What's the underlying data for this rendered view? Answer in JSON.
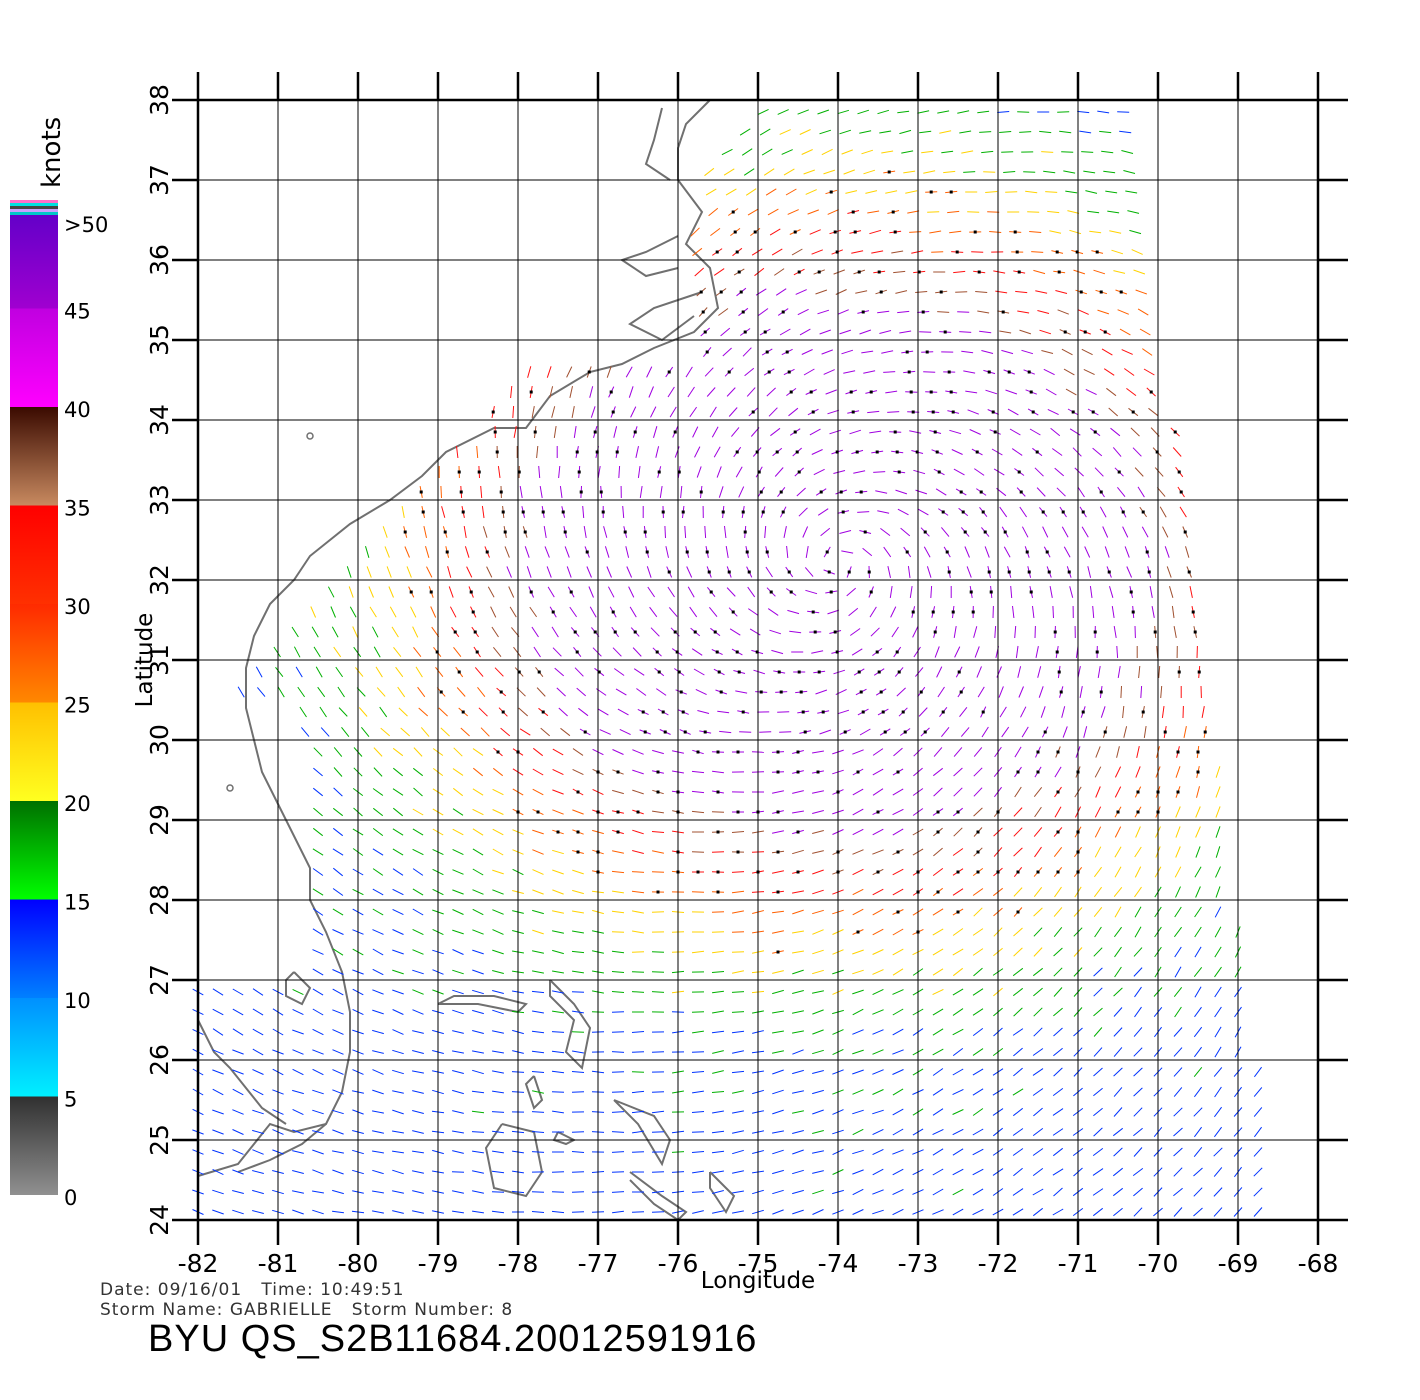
{
  "map": {
    "lon_range": [
      -82,
      -68
    ],
    "lat_range": [
      24,
      38
    ],
    "lon_ticks": [
      "-82",
      "-81",
      "-80",
      "-79",
      "-78",
      "-77",
      "-76",
      "-75",
      "-74",
      "-73",
      "-72",
      "-71",
      "-70",
      "-69",
      "-68"
    ],
    "lat_ticks": [
      "24",
      "25",
      "26",
      "27",
      "28",
      "29",
      "30",
      "31",
      "32",
      "33",
      "34",
      "35",
      "36",
      "37",
      "38"
    ],
    "x_label": "Longitude",
    "y_label": "Latitude",
    "grid": true,
    "land_outline_color": "#707070",
    "storm_center": {
      "lon": -74.0,
      "lat": 32.2
    }
  },
  "legend": {
    "units_label": "knots",
    "bands": [
      {
        "label": "0",
        "from": 0,
        "to": 5,
        "color_top": "#303030",
        "color_bottom": "#909090"
      },
      {
        "label": "5",
        "from": 5,
        "to": 10,
        "color_top": "#0090ff",
        "color_bottom": "#00f0ff"
      },
      {
        "label": "10",
        "from": 10,
        "to": 15,
        "color_top": "#0000ff",
        "color_bottom": "#0080ff"
      },
      {
        "label": "15",
        "from": 15,
        "to": 20,
        "color_top": "#007000",
        "color_bottom": "#00ff00"
      },
      {
        "label": "20",
        "from": 20,
        "to": 25,
        "color_top": "#ffc000",
        "color_bottom": "#ffff20"
      },
      {
        "label": "25",
        "from": 25,
        "to": 30,
        "color_top": "#ff2a00",
        "color_bottom": "#ff8800"
      },
      {
        "label": "30",
        "from": 30,
        "to": 35,
        "color_top": "#ff0000",
        "color_bottom": "#ff3000"
      },
      {
        "label": "35",
        "from": 35,
        "to": 40,
        "color_top": "#3a0a00",
        "color_bottom": "#c88a60"
      },
      {
        "label": "40",
        "from": 40,
        "to": 45,
        "color_top": "#c000e0",
        "color_bottom": "#ff00ff"
      },
      {
        "label": "45",
        "from": 45,
        "to": 50,
        "color_top": "#6000c8",
        "color_bottom": "#a000d0"
      },
      {
        "label": ">50",
        "from": 50,
        "to": 55,
        "color_top": "#6000c8",
        "color_bottom": "#6000c8"
      }
    ]
  },
  "info": {
    "date_label": "Date:",
    "date": "09/16/01",
    "time_label": "Time:",
    "time": "10:49:51",
    "storm_name_label": "Storm Name:",
    "storm_name": "GABRIELLE",
    "storm_number_label": "Storm Number:",
    "storm_number": "8",
    "product_id": "BYU QS_S2B11684.20012591916"
  }
}
